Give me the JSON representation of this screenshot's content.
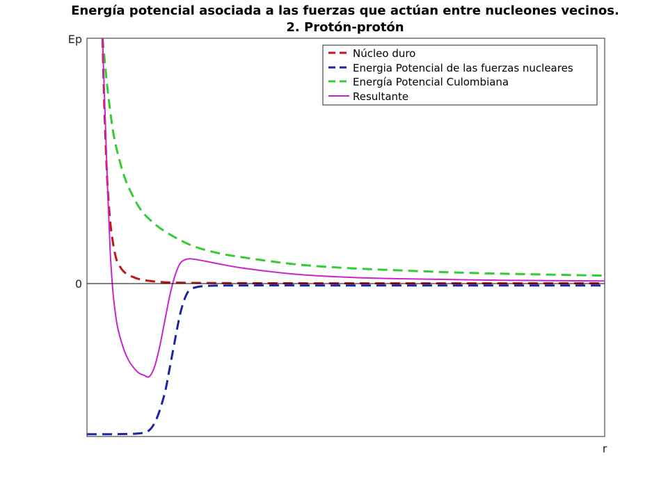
{
  "chart_data": {
    "type": "line",
    "title": "Energía potencial asociada a las fuerzas que actúan entre nucleones vecinos.",
    "subtitle": "2. Protón-protón",
    "xlabel": "r",
    "ylabel": "Ep",
    "y_tick_labels": [
      "0"
    ],
    "xlim": [
      0,
      10
    ],
    "ylim": [
      -1.0,
      1.6
    ],
    "grid": false,
    "legend_placement": "top-right",
    "series": [
      {
        "name": "Núcleo duro",
        "color": "#c01616",
        "style": "dashed",
        "x": [
          0.3,
          0.33,
          0.36,
          0.4,
          0.45,
          0.5,
          0.55,
          0.6,
          0.7,
          0.8,
          0.9,
          1.0,
          1.2,
          1.5,
          2.0,
          3.0,
          5.0,
          7.0,
          10.0
        ],
        "y": [
          1.6,
          1.22,
          0.92,
          0.62,
          0.4,
          0.27,
          0.18,
          0.13,
          0.08,
          0.055,
          0.04,
          0.028,
          0.016,
          0.007,
          0.003,
          0.001,
          0.0,
          0.0,
          0.0
        ]
      },
      {
        "name": "Energia Potencial de las fuerzas nucleares",
        "color": "#1a24a8",
        "style": "dashed",
        "x": [
          0.0,
          0.5,
          1.0,
          1.2,
          1.35,
          1.5,
          1.6,
          1.7,
          1.8,
          1.9,
          2.0,
          2.2,
          2.5,
          3.0,
          5.0,
          7.0,
          10.0
        ],
        "y": [
          -0.985,
          -0.985,
          -0.98,
          -0.96,
          -0.88,
          -0.72,
          -0.55,
          -0.37,
          -0.2,
          -0.09,
          -0.04,
          -0.02,
          -0.015,
          -0.014,
          -0.014,
          -0.014,
          -0.014
        ]
      },
      {
        "name": "Energía Potencial Culombiana",
        "color": "#33cc33",
        "style": "dashed",
        "x": [
          0.3,
          0.35,
          0.4,
          0.5,
          0.6,
          0.7,
          0.8,
          1.0,
          1.2,
          1.5,
          2.0,
          2.5,
          3.0,
          4.0,
          5.0,
          6.0,
          7.0,
          8.0,
          10.0
        ],
        "y": [
          1.6,
          1.43,
          1.26,
          1.0,
          0.84,
          0.72,
          0.63,
          0.5,
          0.42,
          0.34,
          0.25,
          0.2,
          0.17,
          0.125,
          0.1,
          0.085,
          0.072,
          0.063,
          0.05
        ]
      },
      {
        "name": "Resultante",
        "color": "#cc22cc",
        "style": "solid",
        "x": [
          0.3,
          0.35,
          0.4,
          0.45,
          0.5,
          0.55,
          0.6,
          0.7,
          0.8,
          0.9,
          1.0,
          1.1,
          1.2,
          1.3,
          1.4,
          1.5,
          1.6,
          1.7,
          1.8,
          1.9,
          2.0,
          2.2,
          2.5,
          3.0,
          4.0,
          5.0,
          6.0,
          7.0,
          8.0,
          10.0
        ],
        "y": [
          1.6,
          1.1,
          0.6,
          0.2,
          -0.05,
          -0.2,
          -0.3,
          -0.42,
          -0.5,
          -0.55,
          -0.585,
          -0.6,
          -0.61,
          -0.55,
          -0.42,
          -0.25,
          -0.08,
          0.05,
          0.13,
          0.155,
          0.16,
          0.15,
          0.13,
          0.1,
          0.06,
          0.04,
          0.03,
          0.025,
          0.02,
          0.015
        ]
      }
    ]
  }
}
